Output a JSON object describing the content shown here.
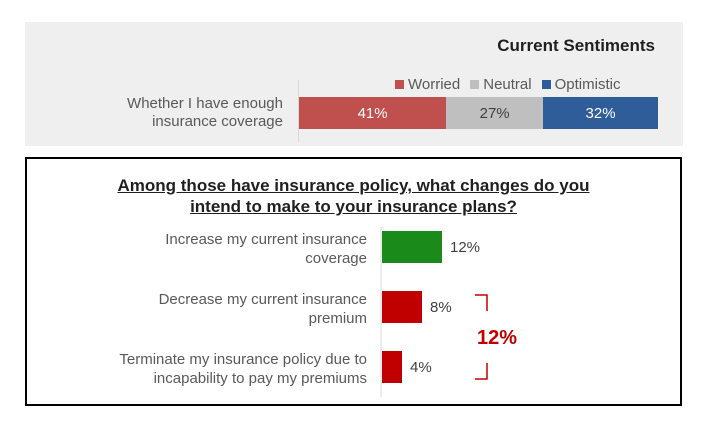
{
  "chart_data": [
    {
      "type": "bar",
      "orientation": "horizontal-stacked",
      "title": "Current Sentiments",
      "categories": [
        "Whether I have enough insurance coverage"
      ],
      "category_lines": [
        "Whether I have enough",
        "insurance coverage"
      ],
      "series": [
        {
          "name": "Worried",
          "values": [
            41
          ],
          "label": "41%",
          "color": "#c0504d"
        },
        {
          "name": "Neutral",
          "values": [
            27
          ],
          "label": "27%",
          "color": "#bfbfbf"
        },
        {
          "name": "Optimistic",
          "values": [
            32
          ],
          "label": "32%",
          "color": "#2e5d9a"
        }
      ],
      "xlim": [
        0,
        100
      ]
    },
    {
      "type": "bar",
      "orientation": "horizontal",
      "title_lines": [
        "Among those have insurance policy, what changes do you",
        "intend to make to your insurance plans?"
      ],
      "categories": [
        {
          "lines": [
            "Increase my current insurance",
            "coverage"
          ],
          "value": 12,
          "label": "12%",
          "color": "#1a8a1a"
        },
        {
          "lines": [
            "Decrease my current insurance",
            "premium"
          ],
          "value": 8,
          "label": "8%",
          "color": "#c00000"
        },
        {
          "lines": [
            "Terminate my insurance policy due to",
            "incapability to pay my premiums"
          ],
          "value": 4,
          "label": "4%",
          "color": "#c00000"
        }
      ],
      "xlim": [
        0,
        45
      ],
      "annotation": {
        "text": "12%",
        "color": "#c00000",
        "brackets": [
          "Decrease my current insurance premium",
          "Terminate my insurance policy due to incapability to pay my premiums"
        ]
      }
    }
  ]
}
